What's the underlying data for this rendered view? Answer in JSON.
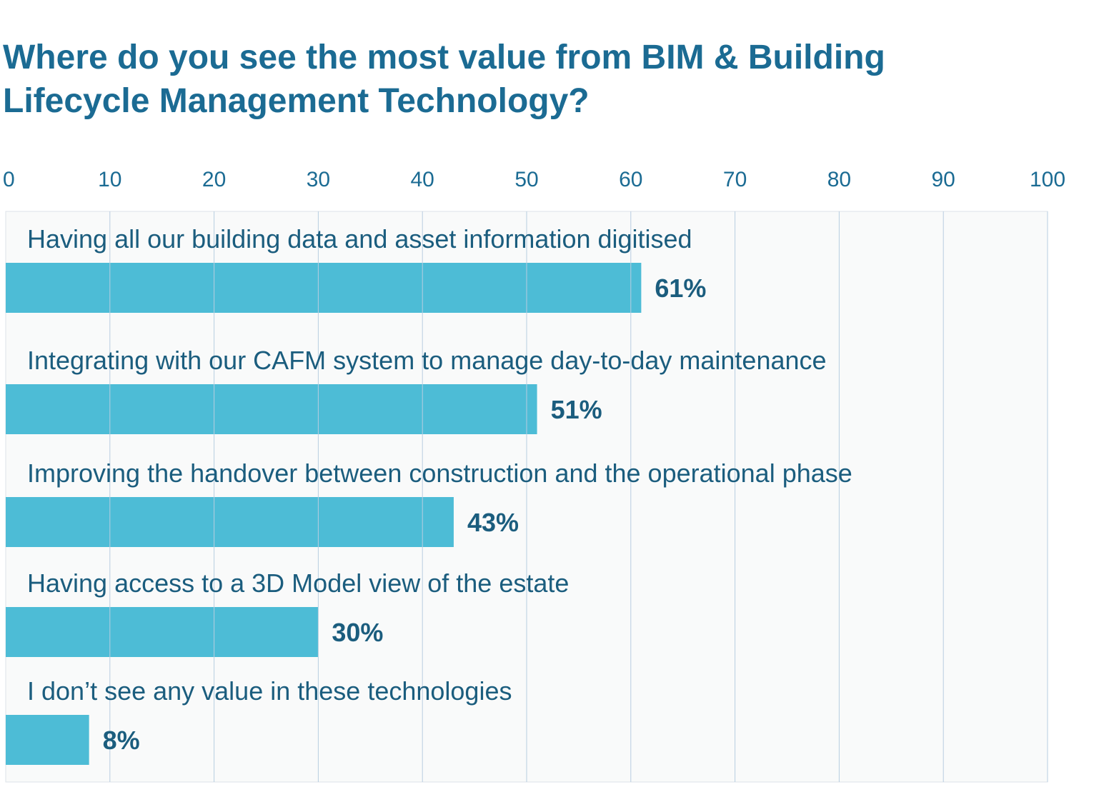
{
  "chart_data": {
    "type": "bar",
    "orientation": "horizontal",
    "title_lines": [
      "Where do you see the most value from BIM & Building",
      "Lifecycle Management Technology?"
    ],
    "categories": [
      "Having all our building data and asset information digitised",
      "Integrating with our CAFM system to manage day-to-day maintenance",
      "Improving the handover between construction and the operational phase",
      "Having access to a 3D Model view of the estate",
      "I don’t see any value in these technologies"
    ],
    "values": [
      61,
      51,
      43,
      30,
      8
    ],
    "value_labels": [
      "61%",
      "51%",
      "43%",
      "30%",
      "8%"
    ],
    "xticks": [
      "0",
      "10",
      "20",
      "30",
      "40",
      "50",
      "60",
      "70",
      "80",
      "90",
      "100"
    ],
    "xlim": [
      0,
      100
    ],
    "grid": true,
    "bar_color": "#4dbcd6",
    "text_color": "#1b6b93",
    "grid_color": "#b8cde0",
    "plot_bg": "#f9fafa"
  }
}
